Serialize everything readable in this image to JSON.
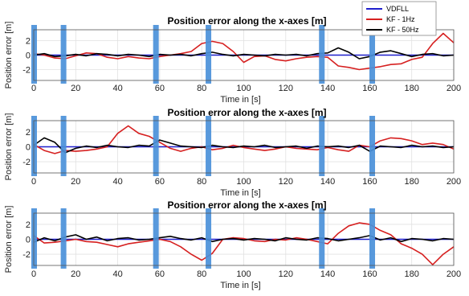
{
  "chart_data": [
    {
      "type": "line",
      "title": "Position error along the x-axes [m]",
      "xlabel": "Time in [s]",
      "ylabel": "Position error [m]",
      "xlim": [
        0,
        200
      ],
      "ylim": [
        -3.5,
        3.5
      ],
      "xticks": [
        0,
        20,
        40,
        60,
        80,
        100,
        120,
        140,
        160,
        180,
        200
      ],
      "yticks": [
        2,
        0,
        -2
      ],
      "grid": true,
      "legend_position": "top-right",
      "markers_x": [
        0,
        14,
        58,
        83,
        137,
        161
      ],
      "series": [
        {
          "name": "VDFLL",
          "color": "#1f1fcc",
          "x": [
            0,
            10,
            20,
            30,
            40,
            50,
            60,
            70,
            80,
            90,
            100,
            110,
            120,
            130,
            140,
            150,
            160,
            170,
            180,
            190,
            200
          ],
          "y": [
            0,
            0,
            0,
            0,
            0,
            0,
            0,
            0,
            0,
            0,
            0,
            0,
            0,
            0,
            0,
            0,
            0,
            0,
            0,
            0,
            0
          ]
        },
        {
          "name": "KF - 1Hz",
          "color": "#d62020",
          "x": [
            0,
            5,
            10,
            15,
            20,
            25,
            30,
            35,
            40,
            45,
            50,
            55,
            60,
            65,
            70,
            75,
            80,
            85,
            90,
            95,
            100,
            105,
            110,
            115,
            120,
            125,
            130,
            135,
            140,
            145,
            150,
            155,
            160,
            165,
            170,
            175,
            180,
            185,
            190,
            195,
            200
          ],
          "y": [
            0.2,
            0.0,
            -0.4,
            -0.5,
            -0.1,
            0.3,
            0.2,
            -0.3,
            -0.5,
            -0.2,
            -0.4,
            -0.5,
            -0.2,
            0.0,
            0.2,
            0.5,
            1.6,
            1.9,
            1.6,
            0.5,
            -1.0,
            -0.2,
            -0.1,
            -0.6,
            -0.8,
            -0.5,
            -0.3,
            -0.2,
            -0.3,
            -1.5,
            -1.7,
            -2.0,
            -1.8,
            -1.6,
            -1.3,
            -1.2,
            -0.6,
            -0.3,
            1.6,
            3.0,
            1.7
          ]
        },
        {
          "name": "KF - 50Hz",
          "color": "#000000",
          "x": [
            0,
            5,
            10,
            15,
            20,
            25,
            30,
            35,
            40,
            45,
            50,
            55,
            60,
            65,
            70,
            75,
            80,
            85,
            90,
            95,
            100,
            105,
            110,
            115,
            120,
            125,
            130,
            135,
            140,
            145,
            150,
            155,
            160,
            165,
            170,
            175,
            180,
            185,
            190,
            195,
            200
          ],
          "y": [
            0.0,
            0.2,
            -0.2,
            -0.1,
            0.1,
            -0.1,
            0.2,
            0.1,
            -0.1,
            0.1,
            0.0,
            -0.2,
            0.1,
            0.0,
            0.1,
            -0.1,
            0.2,
            0.4,
            0.1,
            -0.1,
            0.1,
            0.0,
            -0.1,
            0.1,
            0.0,
            0.1,
            -0.1,
            0.2,
            0.3,
            1.0,
            0.4,
            -0.5,
            -0.2,
            0.4,
            0.6,
            0.2,
            -0.2,
            0.1,
            0.2,
            -0.1,
            0.0
          ]
        }
      ]
    },
    {
      "type": "line",
      "title": "Position error along the x-axes [m]",
      "xlabel": "Time in [s]",
      "ylabel": "Position error [m]",
      "xlim": [
        0,
        200
      ],
      "ylim": [
        -3.5,
        3.5
      ],
      "xticks": [
        0,
        20,
        40,
        60,
        80,
        100,
        120,
        140,
        160,
        180,
        200
      ],
      "yticks": [
        2,
        0,
        -2
      ],
      "grid": true,
      "markers_x": [
        0,
        14,
        58,
        83,
        137,
        161
      ],
      "series": [
        {
          "name": "VDFLL",
          "color": "#1f1fcc",
          "x": [
            0,
            10,
            20,
            30,
            40,
            50,
            60,
            70,
            80,
            90,
            100,
            110,
            120,
            130,
            140,
            150,
            160,
            170,
            180,
            190,
            200
          ],
          "y": [
            0,
            0,
            0,
            0,
            0,
            0,
            0,
            0,
            0,
            0,
            0,
            0,
            0,
            0,
            0,
            0,
            0,
            0,
            0,
            0,
            0
          ]
        },
        {
          "name": "KF - 1Hz",
          "color": "#d62020",
          "x": [
            0,
            5,
            10,
            15,
            20,
            25,
            30,
            35,
            40,
            45,
            50,
            55,
            60,
            65,
            70,
            75,
            80,
            85,
            90,
            95,
            100,
            105,
            110,
            115,
            120,
            125,
            130,
            135,
            140,
            145,
            150,
            155,
            160,
            165,
            170,
            175,
            180,
            185,
            190,
            195,
            200
          ],
          "y": [
            0.3,
            -0.5,
            -0.9,
            -0.5,
            -0.6,
            -0.5,
            -0.3,
            0.0,
            1.8,
            2.8,
            1.8,
            1.4,
            0.6,
            -0.2,
            -0.6,
            -0.2,
            0.0,
            -0.4,
            -0.2,
            0.2,
            -0.1,
            -0.3,
            -0.5,
            -0.3,
            0.0,
            -0.2,
            -0.3,
            -0.4,
            -0.1,
            -0.4,
            -0.6,
            0.2,
            0.0,
            0.8,
            1.2,
            1.1,
            0.8,
            0.3,
            0.5,
            0.3,
            -0.3
          ]
        },
        {
          "name": "KF - 50Hz",
          "color": "#000000",
          "x": [
            0,
            5,
            10,
            15,
            20,
            25,
            30,
            35,
            40,
            45,
            50,
            55,
            60,
            65,
            70,
            75,
            80,
            85,
            90,
            95,
            100,
            105,
            110,
            115,
            120,
            125,
            130,
            135,
            140,
            145,
            150,
            155,
            160,
            165,
            170,
            175,
            180,
            185,
            190,
            195,
            200
          ],
          "y": [
            0.2,
            1.2,
            0.6,
            -0.8,
            -0.2,
            0.1,
            -0.1,
            0.2,
            0.0,
            -0.1,
            0.2,
            0.1,
            0.9,
            0.5,
            0.1,
            0.0,
            -0.1,
            0.2,
            0.0,
            -0.1,
            0.1,
            0.0,
            0.2,
            -0.1,
            0.0,
            0.1,
            -0.2,
            0.1,
            0.0,
            0.1,
            -0.1,
            0.2,
            -0.6,
            0.1,
            0.0,
            -0.1,
            0.2,
            0.0,
            0.1,
            -0.1,
            0.0
          ]
        }
      ]
    },
    {
      "type": "line",
      "title": "Position error along the x-axes [m]",
      "xlabel": "Time in [s]",
      "ylabel": "Position error [m]",
      "xlim": [
        0,
        200
      ],
      "ylim": [
        -3.5,
        3.5
      ],
      "xticks": [
        0,
        20,
        40,
        60,
        80,
        100,
        120,
        140,
        160,
        180,
        200
      ],
      "yticks": [
        2,
        0,
        -2
      ],
      "grid": true,
      "markers_x": [
        0,
        14,
        58,
        83,
        137,
        161
      ],
      "series": [
        {
          "name": "VDFLL",
          "color": "#1f1fcc",
          "x": [
            0,
            10,
            20,
            30,
            40,
            50,
            60,
            70,
            80,
            90,
            100,
            110,
            120,
            130,
            140,
            150,
            160,
            170,
            180,
            190,
            200
          ],
          "y": [
            0,
            0,
            0,
            0,
            0,
            0,
            0,
            0,
            0,
            0,
            0,
            0,
            0,
            0,
            0,
            0,
            0,
            0,
            0,
            0,
            0
          ]
        },
        {
          "name": "KF - 1Hz",
          "color": "#d62020",
          "x": [
            0,
            5,
            10,
            15,
            20,
            25,
            30,
            35,
            40,
            45,
            50,
            55,
            60,
            65,
            70,
            75,
            80,
            85,
            90,
            95,
            100,
            105,
            110,
            115,
            120,
            125,
            130,
            135,
            140,
            145,
            150,
            155,
            160,
            165,
            170,
            175,
            180,
            185,
            190,
            195,
            200
          ],
          "y": [
            0.5,
            -0.5,
            -0.4,
            -0.2,
            0.0,
            -0.3,
            -0.4,
            -0.7,
            -1.0,
            -0.6,
            -0.4,
            -0.2,
            0.0,
            -0.3,
            -1.0,
            -2.0,
            -2.8,
            -1.9,
            0.0,
            0.2,
            0.1,
            -0.2,
            -0.3,
            0.0,
            -0.1,
            0.2,
            0.0,
            -0.3,
            -0.6,
            0.8,
            1.8,
            2.2,
            2.0,
            1.2,
            0.6,
            -0.6,
            -1.2,
            -2.0,
            -3.4,
            -2.0,
            -1.0
          ]
        },
        {
          "name": "KF - 50Hz",
          "color": "#000000",
          "x": [
            0,
            5,
            10,
            15,
            20,
            25,
            30,
            35,
            40,
            45,
            50,
            55,
            60,
            65,
            70,
            75,
            80,
            85,
            90,
            95,
            100,
            105,
            110,
            115,
            120,
            125,
            130,
            135,
            140,
            145,
            150,
            155,
            160,
            165,
            170,
            175,
            180,
            185,
            190,
            195,
            200
          ],
          "y": [
            -0.4,
            0.2,
            -0.2,
            0.3,
            0.6,
            0.0,
            0.3,
            -0.2,
            0.1,
            0.2,
            -0.1,
            0.0,
            0.2,
            0.4,
            0.1,
            -0.1,
            0.2,
            -0.3,
            0.0,
            0.1,
            -0.1,
            0.1,
            0.0,
            -0.2,
            0.2,
            0.0,
            -0.1,
            0.2,
            0.1,
            -0.2,
            0.0,
            0.2,
            0.5,
            -0.1,
            0.2,
            -0.3,
            0.1,
            0.0,
            -0.2,
            0.1,
            0.0
          ]
        }
      ]
    }
  ]
}
